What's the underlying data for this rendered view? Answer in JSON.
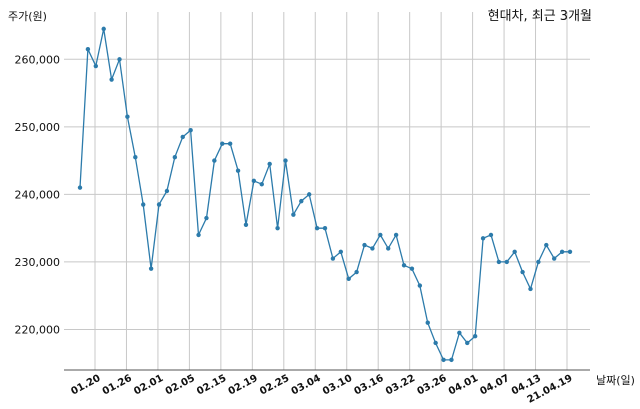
{
  "chart_data": {
    "type": "line",
    "title": "현대차, 최근 3개월",
    "ylabel": "주가(원)",
    "xlabel": "날짜(일)",
    "ylim": [
      214000,
      267000
    ],
    "yticks": [
      220000,
      230000,
      240000,
      250000,
      260000
    ],
    "ytick_labels": [
      "220,000",
      "230,000",
      "240,000",
      "250,000",
      "260,000"
    ],
    "xtick_labels": [
      "01.20",
      "01.26",
      "02.01",
      "02.05",
      "02.15",
      "02.19",
      "02.25",
      "03.04",
      "03.10",
      "03.16",
      "03.22",
      "03.26",
      "04.01",
      "04.07",
      "04.13",
      "21.04.19"
    ],
    "grid": true,
    "legend": "none",
    "color": "#2c7bab",
    "values": [
      241000,
      261500,
      259000,
      264500,
      257000,
      260000,
      251500,
      245500,
      238500,
      229000,
      238500,
      240500,
      245500,
      248500,
      249500,
      234000,
      236500,
      245000,
      247500,
      247500,
      243500,
      235500,
      242000,
      241500,
      244500,
      235000,
      245000,
      237000,
      239000,
      240000,
      235000,
      235000,
      230500,
      231500,
      227500,
      228500,
      232500,
      232000,
      234000,
      232000,
      234000,
      229500,
      229000,
      226500,
      221000,
      218000,
      215500,
      215500,
      219500,
      218000,
      219000,
      233500,
      234000,
      230000,
      230000,
      231500,
      228500,
      226000,
      230000,
      232500,
      230500,
      231500,
      231500
    ]
  }
}
